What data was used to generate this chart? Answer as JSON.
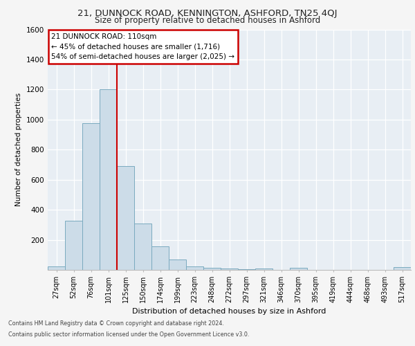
{
  "title1": "21, DUNNOCK ROAD, KENNINGTON, ASHFORD, TN25 4QJ",
  "title2": "Size of property relative to detached houses in Ashford",
  "xlabel": "Distribution of detached houses by size in Ashford",
  "ylabel": "Number of detached properties",
  "footer1": "Contains HM Land Registry data © Crown copyright and database right 2024.",
  "footer2": "Contains public sector information licensed under the Open Government Licence v3.0.",
  "categories": [
    "27sqm",
    "52sqm",
    "76sqm",
    "101sqm",
    "125sqm",
    "150sqm",
    "174sqm",
    "199sqm",
    "223sqm",
    "248sqm",
    "272sqm",
    "297sqm",
    "321sqm",
    "346sqm",
    "370sqm",
    "395sqm",
    "419sqm",
    "444sqm",
    "468sqm",
    "493sqm",
    "517sqm"
  ],
  "values": [
    25,
    325,
    975,
    1200,
    690,
    310,
    155,
    70,
    25,
    15,
    10,
    5,
    10,
    0,
    15,
    0,
    0,
    0,
    0,
    0,
    20
  ],
  "bar_color": "#ccdce8",
  "bar_edge_color": "#7aaabf",
  "vline_x": 3.5,
  "vline_color": "#cc0000",
  "annotation_title": "21 DUNNOCK ROAD: 110sqm",
  "annotation_line1": "← 45% of detached houses are smaller (1,716)",
  "annotation_line2": "54% of semi-detached houses are larger (2,025) →",
  "annotation_box_color": "#cc0000",
  "ylim": [
    0,
    1600
  ],
  "yticks": [
    0,
    200,
    400,
    600,
    800,
    1000,
    1200,
    1400,
    1600
  ],
  "background_color": "#e8eef4",
  "fig_background": "#f5f5f5",
  "grid_color": "#ffffff"
}
